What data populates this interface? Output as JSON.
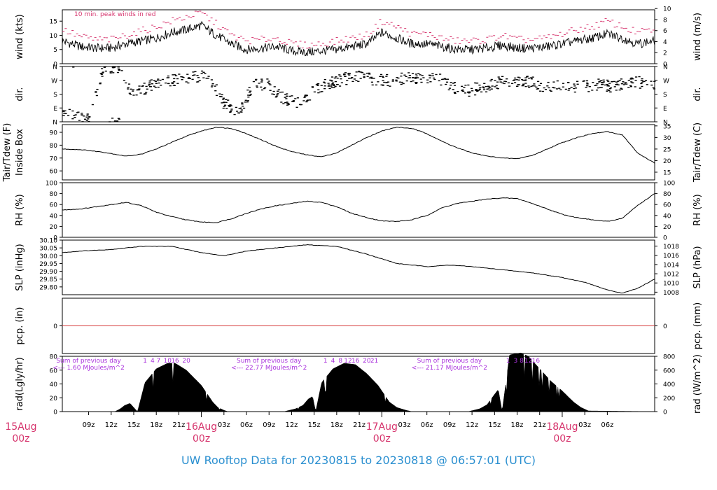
{
  "footer": {
    "title": "UW Rooftop Data for 20230815  to  20230818 @ 06:57:01  (UTC)"
  },
  "colors": {
    "text": "#000000",
    "peak": "#d6336c",
    "solar": "#aa33dd",
    "date": "#d6336c",
    "footer": "#2a8fd0",
    "zero_line": "#d63b3b"
  },
  "time_axis": {
    "range_hours": [
      5.5,
      84.3
    ],
    "ticks": [
      {
        "hour": 9,
        "label": "09z"
      },
      {
        "hour": 12,
        "label": "12z"
      },
      {
        "hour": 15,
        "label": "15z"
      },
      {
        "hour": 18,
        "label": "18z"
      },
      {
        "hour": 21,
        "label": "21z"
      },
      {
        "hour": 27,
        "label": "03z"
      },
      {
        "hour": 30,
        "label": "06z"
      },
      {
        "hour": 33,
        "label": "09z"
      },
      {
        "hour": 36,
        "label": "12z"
      },
      {
        "hour": 39,
        "label": "15z"
      },
      {
        "hour": 42,
        "label": "18z"
      },
      {
        "hour": 45,
        "label": "21z"
      },
      {
        "hour": 51,
        "label": "03z"
      },
      {
        "hour": 54,
        "label": "06z"
      },
      {
        "hour": 57,
        "label": "09z"
      },
      {
        "hour": 60,
        "label": "12z"
      },
      {
        "hour": 63,
        "label": "15z"
      },
      {
        "hour": 66,
        "label": "18z"
      },
      {
        "hour": 69,
        "label": "21z"
      },
      {
        "hour": 75,
        "label": "03z"
      },
      {
        "hour": 78,
        "label": "06z"
      }
    ],
    "day_labels": [
      {
        "hour": 0,
        "day": "15Aug",
        "time": "00z"
      },
      {
        "hour": 24,
        "day": "16Aug",
        "time": "00z"
      },
      {
        "hour": 48,
        "day": "17Aug",
        "time": "00z"
      },
      {
        "hour": 72,
        "day": "18Aug",
        "time": "00z"
      }
    ]
  },
  "chart_data": [
    {
      "type": "line",
      "id": "wind",
      "ylabel": "wind (kts)",
      "ylabel_right": "wind (m/s)",
      "annotation": "10 min. peak winds in red",
      "ylim": [
        0,
        19
      ],
      "yticks": [
        0,
        5,
        10,
        15
      ],
      "right_scale": 1.94384,
      "right_ylim": [
        0,
        10
      ],
      "right_ticks": [
        0,
        2,
        4,
        6,
        8,
        10
      ],
      "x": [
        5.5,
        8,
        10,
        12,
        14,
        16,
        18,
        20,
        22,
        24,
        26,
        28,
        30,
        32,
        34,
        36,
        38,
        40,
        42,
        44,
        46,
        48,
        50,
        52,
        54,
        56,
        58,
        60,
        62,
        64,
        66,
        68,
        70,
        72,
        74,
        76,
        78,
        80,
        82,
        84.3
      ],
      "series": [
        {
          "role": "mean",
          "values": [
            8,
            6,
            5.5,
            5.5,
            7,
            8,
            9,
            11,
            12,
            13.5,
            10,
            7,
            5,
            5.5,
            6,
            4.5,
            4,
            4.5,
            5,
            6,
            7,
            11,
            9,
            7,
            7,
            6,
            5,
            5,
            5.5,
            6.5,
            5.5,
            5.5,
            6,
            7,
            8,
            9,
            10.5,
            9,
            7,
            8
          ]
        },
        {
          "role": "peak",
          "values": [
            12,
            9.5,
            8.5,
            8.5,
            10,
            11.5,
            13,
            15,
            16.5,
            18,
            14,
            10,
            8,
            8.5,
            9,
            7,
            6.5,
            7,
            8,
            9,
            10,
            15,
            13,
            10.5,
            10.5,
            9,
            8,
            8,
            8.5,
            10,
            8.5,
            8.5,
            9,
            10.5,
            12,
            13,
            15,
            13,
            11,
            12
          ]
        }
      ]
    },
    {
      "type": "scatter",
      "id": "dir",
      "ylabel": "dir.",
      "ylabel_right": "dir.",
      "ylim": [
        0,
        360
      ],
      "yticks": [
        {
          "v": 0,
          "label": "N"
        },
        {
          "v": 90,
          "label": "E"
        },
        {
          "v": 180,
          "label": "S"
        },
        {
          "v": 270,
          "label": "W"
        },
        {
          "v": 360,
          "label": "N"
        }
      ],
      "x": [
        5.5,
        7,
        9,
        11,
        13,
        15,
        17,
        19,
        21,
        23,
        25,
        27,
        29,
        31,
        33,
        35,
        37,
        39,
        41,
        43,
        45,
        47,
        49,
        51,
        53,
        55,
        57,
        59,
        61,
        63,
        65,
        67,
        69,
        71,
        73,
        75,
        77,
        79,
        81,
        83,
        84.3
      ],
      "values": [
        60,
        30,
        20,
        355,
        350,
        170,
        230,
        260,
        270,
        290,
        300,
        120,
        60,
        250,
        240,
        150,
        120,
        200,
        250,
        280,
        290,
        275,
        270,
        280,
        290,
        295,
        230,
        200,
        220,
        250,
        260,
        265,
        240,
        230,
        220,
        230,
        240,
        230,
        250,
        260,
        240
      ]
    },
    {
      "type": "line",
      "id": "temp",
      "ylabel": "Tair/Tdew (F)",
      "ylabel2": "Inside Box",
      "ylabel_right": "Tair/Tdew (C)",
      "ylim": [
        53,
        96
      ],
      "yticks": [
        60,
        70,
        80,
        90
      ],
      "right_ticks": [
        15,
        20,
        25,
        30,
        35
      ],
      "x": [
        5.5,
        8,
        11,
        14,
        16,
        18,
        20,
        22,
        24,
        26,
        28,
        30,
        32,
        34,
        36,
        38,
        40,
        42,
        44,
        46,
        48,
        50,
        52,
        54,
        56,
        58,
        60,
        62,
        64,
        66,
        68,
        70,
        72,
        74,
        76,
        78,
        80,
        82,
        84.3
      ],
      "values": [
        77,
        76.5,
        74.5,
        71.5,
        73,
        77,
        82,
        87,
        91,
        94,
        93,
        89,
        84,
        79,
        75,
        72.5,
        71,
        74,
        80,
        86,
        91,
        94,
        93,
        89,
        83,
        78,
        74,
        71.5,
        70,
        69.5,
        72,
        77,
        82,
        86,
        89,
        90.5,
        88,
        74,
        66
      ]
    },
    {
      "type": "line",
      "id": "rh",
      "ylabel": "RH (%)",
      "ylabel_right": "RH (%)",
      "ylim": [
        0,
        100
      ],
      "yticks": [
        0,
        20,
        40,
        60,
        80,
        100
      ],
      "x": [
        5.5,
        8,
        11,
        14,
        16,
        18,
        20,
        22,
        24,
        26,
        28,
        30,
        32,
        34,
        36,
        38,
        40,
        42,
        44,
        46,
        48,
        50,
        52,
        54,
        56,
        58,
        60,
        62,
        64,
        66,
        68,
        70,
        72,
        74,
        76,
        78,
        80,
        82,
        84.3
      ],
      "values": [
        50,
        52,
        58,
        64,
        58,
        46,
        38,
        32,
        28,
        27,
        34,
        44,
        52,
        58,
        62,
        66,
        64,
        56,
        44,
        36,
        30,
        29,
        32,
        40,
        54,
        62,
        66,
        70,
        72,
        71,
        62,
        52,
        42,
        36,
        32,
        29,
        35,
        58,
        80
      ]
    },
    {
      "type": "line",
      "id": "slp",
      "ylabel": "SLP (inHg)",
      "ylabel_right": "SLP (hPa)",
      "ylim": [
        29.75,
        30.1
      ],
      "yticks": [
        29.8,
        29.85,
        29.9,
        29.95,
        30.0,
        30.05,
        30.1
      ],
      "yticks_format": 2,
      "right_ticks": [
        1008,
        1010,
        1012,
        1014,
        1016,
        1018
      ],
      "x": [
        5.5,
        8,
        12,
        16,
        20,
        24,
        27,
        30,
        34,
        38,
        42,
        46,
        50,
        54,
        57,
        60,
        64,
        68,
        72,
        75,
        78,
        80,
        82,
        84.3
      ],
      "values": [
        30.02,
        30.03,
        30.04,
        30.06,
        30.06,
        30.02,
        30.0,
        30.03,
        30.05,
        30.07,
        30.06,
        30.01,
        29.95,
        29.93,
        29.94,
        29.93,
        29.91,
        29.89,
        29.86,
        29.83,
        29.78,
        29.76,
        29.79,
        29.85
      ]
    },
    {
      "type": "line",
      "id": "pcp",
      "ylabel": "pcp. (in)",
      "ylabel_right": "pcp. (mm)",
      "ylim": [
        -1,
        1
      ],
      "yticks": [
        0
      ],
      "right_ticks": [
        0
      ],
      "x": [
        5.5,
        84.3
      ],
      "values": [
        0,
        0
      ]
    },
    {
      "type": "area",
      "id": "rad",
      "ylabel": "rad(Lgly/hr)",
      "ylabel_right": "rad (W/m^2)",
      "ylim": [
        0,
        80
      ],
      "yticks": [
        0,
        20,
        40,
        60,
        80
      ],
      "right_ticks": [
        0,
        200,
        400,
        600,
        800
      ],
      "x": [
        5.5,
        10,
        12.5,
        13.2,
        13.8,
        14.5,
        15.5,
        16.5,
        18,
        19.5,
        20.5,
        22,
        24,
        25.5,
        26.2,
        27,
        27.5,
        35,
        36.5,
        37.5,
        38.2,
        38.8,
        39.2,
        40,
        41.5,
        43,
        44.5,
        46,
        47.5,
        49,
        50,
        51.2,
        52,
        59.5,
        61,
        62,
        63,
        63.5,
        64,
        65,
        66.5,
        67.5,
        69,
        70.5,
        72,
        73.5,
        74.5,
        75.5,
        84.3
      ],
      "values": [
        0,
        0,
        0,
        4,
        9,
        12,
        0,
        42,
        62,
        70,
        70,
        60,
        38,
        14,
        6,
        2,
        0,
        0,
        4,
        9,
        18,
        22,
        0,
        42,
        62,
        70,
        68,
        55,
        38,
        14,
        6,
        2,
        0,
        0,
        4,
        10,
        25,
        32,
        0,
        82,
        85,
        80,
        62,
        44,
        30,
        14,
        6,
        1,
        0
      ],
      "daylight_hours": [
        {
          "hour": 16.5,
          "label": "1"
        },
        {
          "hour": 17.5,
          "label": "4"
        },
        {
          "hour": 18.3,
          "label": "7"
        },
        {
          "hour": 19.5,
          "label": "10"
        },
        {
          "hour": 20.5,
          "label": "16"
        },
        {
          "hour": 22,
          "label": "20"
        },
        {
          "hour": 40.5,
          "label": "1"
        },
        {
          "hour": 41.5,
          "label": "4"
        },
        {
          "hour": 42.5,
          "label": "8"
        },
        {
          "hour": 43.5,
          "label": "12"
        },
        {
          "hour": 44.5,
          "label": "16"
        },
        {
          "hour": 46,
          "label": "20"
        },
        {
          "hour": 47,
          "label": "21"
        },
        {
          "hour": 64.8,
          "label": "1"
        },
        {
          "hour": 65.8,
          "label": "3"
        },
        {
          "hour": 66.6,
          "label": "8"
        },
        {
          "hour": 67.5,
          "label": "12"
        },
        {
          "hour": 68.5,
          "label": "16"
        }
      ],
      "annotations": [
        {
          "hour": 9.0,
          "line1": "Sum of previous day",
          "line2": "<--- 1.60 MJoules/m^2"
        },
        {
          "hour": 33.0,
          "line1": "Sum of previous day",
          "line2": "<--- 22.77 MJoules/m^2"
        },
        {
          "hour": 57.0,
          "line1": "Sum of previous day",
          "line2": "<--- 21.17 MJoules/m^2"
        }
      ]
    }
  ]
}
